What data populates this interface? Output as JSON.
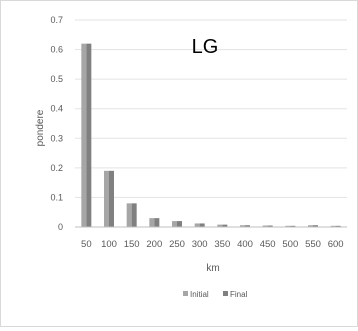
{
  "chart_data": {
    "type": "bar",
    "title": "LG",
    "xlabel": "km",
    "ylabel": "pondere",
    "categories": [
      "50",
      "100",
      "150",
      "200",
      "250",
      "300",
      "350",
      "400",
      "450",
      "500",
      "550",
      "600"
    ],
    "series": [
      {
        "name": "Initial",
        "color": "#a6a6a6",
        "values": [
          0.62,
          0.19,
          0.08,
          0.03,
          0.02,
          0.012,
          0.008,
          0.006,
          0.005,
          0.004,
          0.006,
          0.004
        ]
      },
      {
        "name": "Final",
        "color": "#808080",
        "values": [
          0.62,
          0.19,
          0.08,
          0.03,
          0.02,
          0.012,
          0.008,
          0.006,
          0.005,
          0.004,
          0.006,
          0.004
        ]
      }
    ],
    "yticks": [
      "0",
      "0.1",
      "0.2",
      "0.3",
      "0.4",
      "0.5",
      "0.6",
      "0.7"
    ],
    "ylim": [
      0,
      0.7
    ],
    "grid": true,
    "legend": "bottom"
  }
}
